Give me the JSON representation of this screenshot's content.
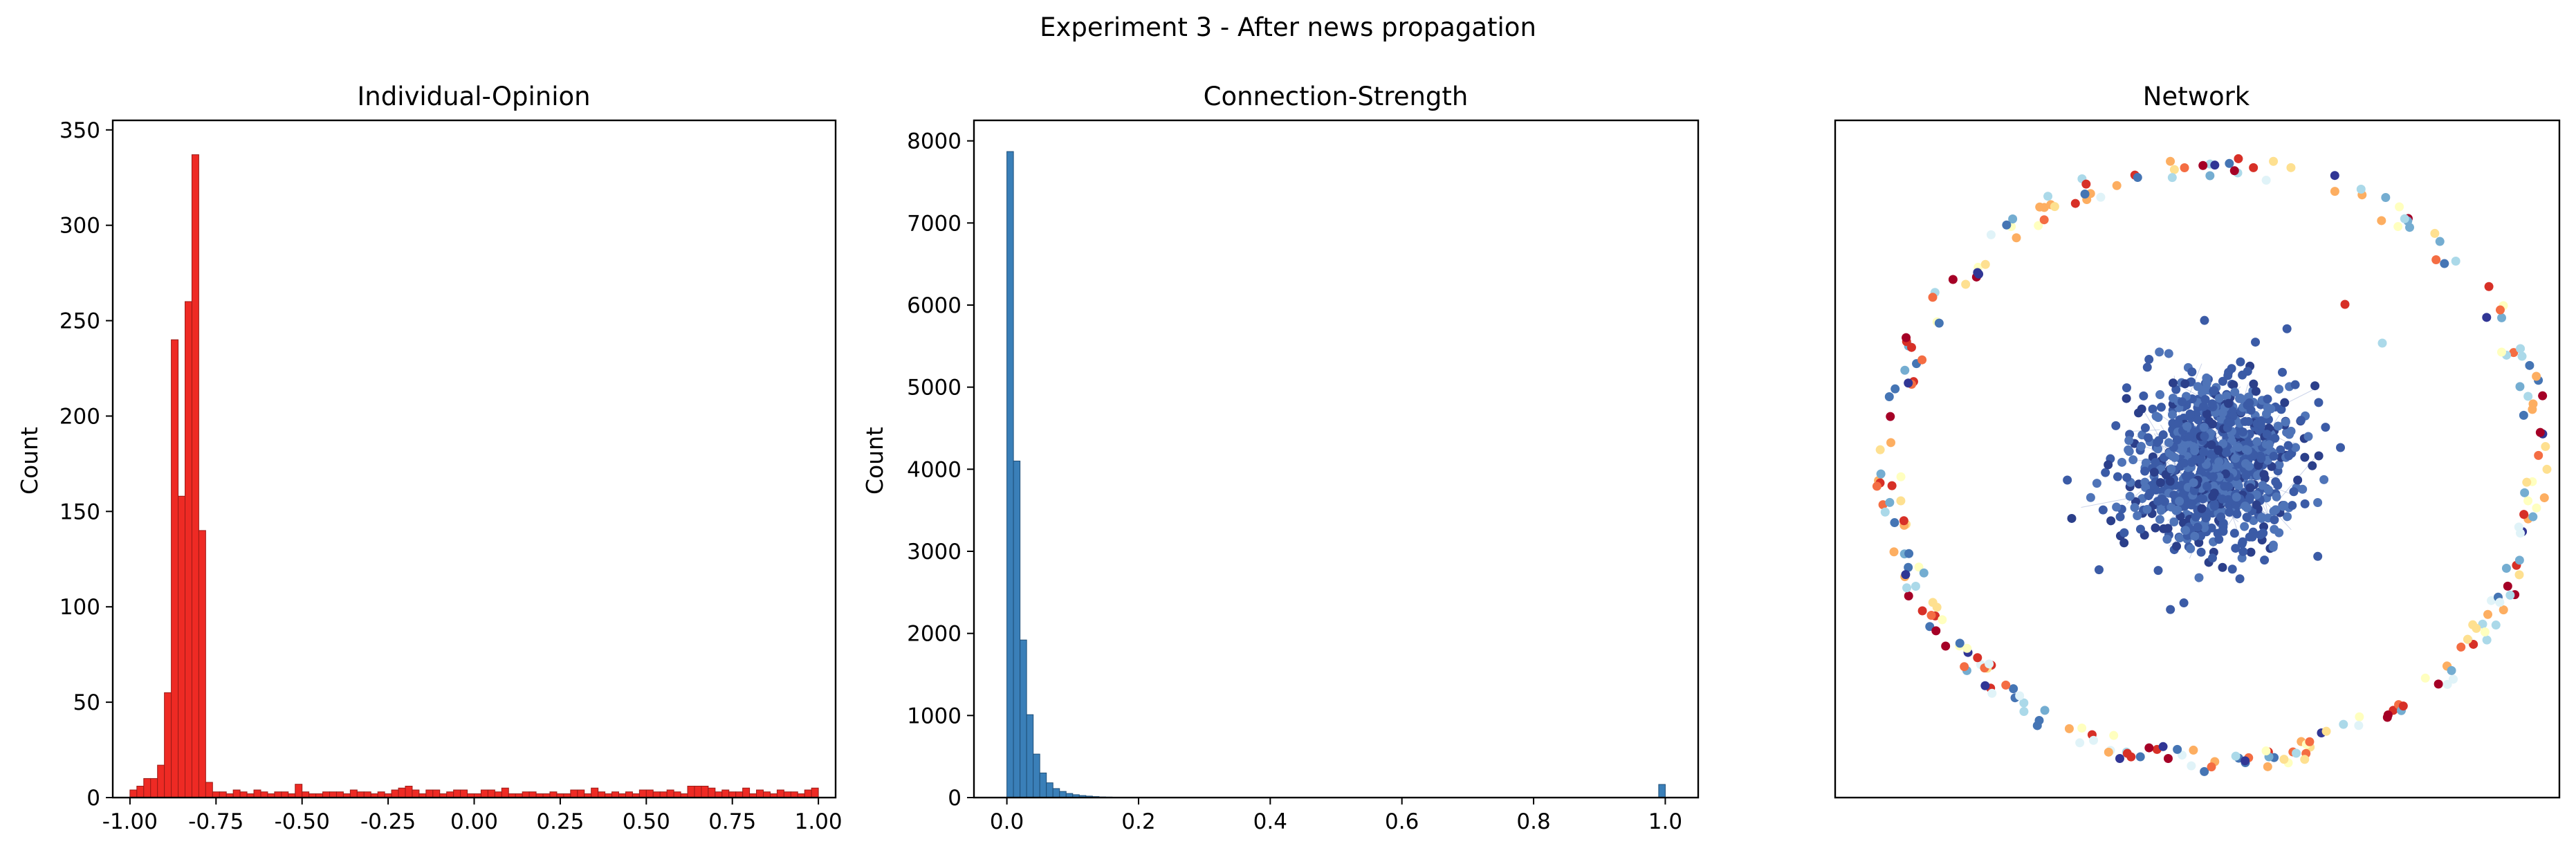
{
  "figure": {
    "suptitle": "Experiment 3 - After news propagation"
  },
  "chart_data": [
    {
      "type": "bar",
      "title": "Individual-Opinion",
      "xlabel": "",
      "ylabel": "Count",
      "xlim": [
        -1.05,
        1.05
      ],
      "ylim": [
        0,
        355
      ],
      "xticks": [
        "-1.00",
        "-0.75",
        "-0.50",
        "-0.25",
        "0.00",
        "0.25",
        "0.50",
        "0.75",
        "1.00"
      ],
      "xtick_values": [
        -1.0,
        -0.75,
        -0.5,
        -0.25,
        0.0,
        0.25,
        0.5,
        0.75,
        1.0
      ],
      "yticks": [
        "0",
        "50",
        "100",
        "150",
        "200",
        "250",
        "300",
        "350"
      ],
      "ytick_values": [
        0,
        50,
        100,
        150,
        200,
        250,
        300,
        350
      ],
      "bin_start": -1.0,
      "bin_width": 0.02,
      "values": [
        4,
        6,
        10,
        10,
        17,
        55,
        240,
        158,
        260,
        337,
        140,
        8,
        3,
        3,
        2,
        4,
        3,
        2,
        4,
        3,
        2,
        3,
        3,
        2,
        7,
        3,
        2,
        2,
        3,
        3,
        3,
        2,
        4,
        3,
        3,
        2,
        3,
        2,
        4,
        5,
        6,
        4,
        2,
        4,
        4,
        2,
        3,
        4,
        4,
        2,
        2,
        4,
        4,
        3,
        5,
        2,
        2,
        3,
        3,
        2,
        2,
        3,
        2,
        2,
        4,
        4,
        2,
        5,
        3,
        2,
        3,
        2,
        3,
        2,
        4,
        4,
        3,
        3,
        4,
        3,
        2,
        6,
        6,
        6,
        5,
        3,
        4,
        3,
        3,
        5,
        2,
        4,
        3,
        2,
        4,
        3,
        3,
        2,
        4,
        5
      ],
      "color": "#ee2a24",
      "edge_color": "#9a1a16"
    },
    {
      "type": "bar",
      "title": "Connection-Strength",
      "xlabel": "",
      "ylabel": "Count",
      "xlim": [
        -0.05,
        1.05
      ],
      "ylim": [
        0,
        8250
      ],
      "xticks": [
        "0.0",
        "0.2",
        "0.4",
        "0.6",
        "0.8",
        "1.0"
      ],
      "xtick_values": [
        0.0,
        0.2,
        0.4,
        0.6,
        0.8,
        1.0
      ],
      "yticks": [
        "0",
        "1000",
        "2000",
        "3000",
        "4000",
        "5000",
        "6000",
        "7000",
        "8000"
      ],
      "ytick_values": [
        0,
        1000,
        2000,
        3000,
        4000,
        5000,
        6000,
        7000,
        8000
      ],
      "bin_start": 0.0,
      "bin_width": 0.01,
      "values": [
        7870,
        4100,
        1920,
        1010,
        530,
        300,
        180,
        110,
        75,
        50,
        35,
        25,
        18,
        12,
        8,
        6,
        4,
        3,
        2,
        2
      ],
      "extra_bars": [
        {
          "x": 0.99,
          "value": 160
        }
      ],
      "color": "#3a7fb8",
      "edge_color": "#1f4f78"
    },
    {
      "type": "scatter",
      "title": "Network",
      "xlabel": "",
      "ylabel": "",
      "axes_visible": false,
      "description_colors": {
        "cluster": "#3b5ba6",
        "ring_palette": [
          "#a50026",
          "#d73027",
          "#f46d43",
          "#fdae61",
          "#fee090",
          "#ffffbf",
          "#e0f3f8",
          "#abd9e9",
          "#74add1",
          "#4575b4",
          "#313695"
        ]
      }
    }
  ]
}
